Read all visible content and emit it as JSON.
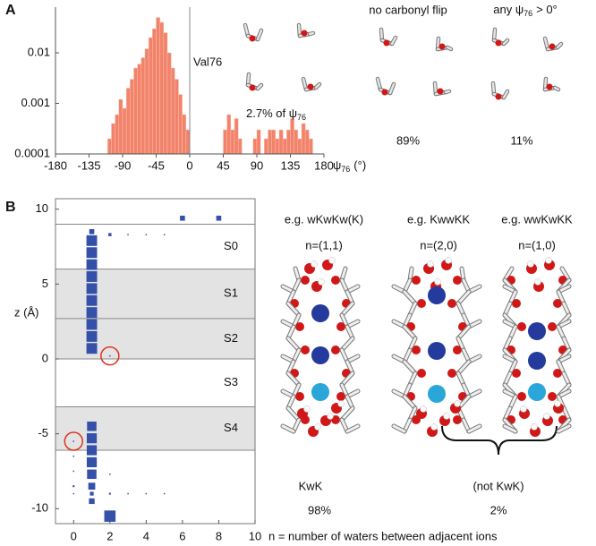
{
  "panel_labels": [
    "A",
    "B"
  ],
  "chart_data": [
    {
      "type": "histogram",
      "xlabel": {
        "symbol": "ψ",
        "subscript": "76",
        "suffix": "(°)"
      },
      "xlim": [
        -180,
        180
      ],
      "xticks": [
        -180,
        -135,
        -90,
        -45,
        0,
        45,
        90,
        135,
        180
      ],
      "ylim": [
        0.0001,
        0.08
      ],
      "yticks": [
        0.0001,
        0.001,
        0.01
      ],
      "log_scale": true,
      "color": "#f2836b",
      "refline": 0,
      "refline_label": "Val76",
      "annotation": {
        "prefix": "2.7% of ψ",
        "subscript": "76"
      },
      "bins": [
        -110,
        -105,
        -100,
        -95,
        -90,
        -85,
        -80,
        -75,
        -70,
        -65,
        -60,
        -55,
        -50,
        -45,
        -40,
        -35,
        -30,
        -25,
        -20,
        -15,
        -10,
        -5,
        0,
        5,
        10,
        15,
        20,
        25,
        30,
        35,
        40,
        45,
        50,
        55,
        60,
        65,
        70,
        75,
        80,
        85,
        90,
        95,
        100,
        105,
        110,
        115,
        120,
        125,
        130,
        135,
        140,
        145,
        150,
        155,
        160,
        165
      ],
      "counts": [
        0.0002,
        0.0004,
        0.0006,
        0.0012,
        0.0008,
        0.002,
        0.003,
        0.005,
        0.006,
        0.008,
        0.012,
        0.02,
        0.03,
        0.05,
        0.04,
        0.025,
        0.01,
        0.005,
        0.003,
        0.0015,
        0.0006,
        0.0003,
        0,
        0,
        0,
        0,
        0,
        0,
        0,
        0,
        0,
        0.0003,
        0.0006,
        0.0003,
        0.0005,
        0.0002,
        0,
        0,
        0,
        0.0002,
        0.0003,
        0,
        0.0002,
        0.0003,
        0.0003,
        0.0002,
        0.0003,
        0.0002,
        0.0003,
        0.0005,
        0.0003,
        0.0002,
        0.0004,
        0.0003,
        0.0002
      ]
    },
    {
      "type": "scatter",
      "xlabel": "n = number of waters between adjacent ions",
      "ylabel": "z (Å)",
      "xlim": [
        -1,
        10
      ],
      "xticks": [
        0,
        2,
        4,
        6,
        8,
        10
      ],
      "ylim": [
        -11,
        10.7
      ],
      "yticks": [
        -10,
        -5,
        0,
        5,
        10
      ],
      "color": "#3450a8",
      "site_boundaries": [
        9,
        6,
        2.7,
        0,
        -3.2,
        -6.1
      ],
      "sites": [
        "S0",
        "S1",
        "S2",
        "S3",
        "S4"
      ],
      "shaded": [
        false,
        true,
        true,
        false,
        true
      ],
      "x": [
        1,
        1,
        1,
        1,
        1,
        1,
        1,
        1,
        1,
        1,
        1,
        2,
        3,
        4,
        5,
        6,
        8,
        2,
        1,
        1,
        1,
        1,
        1,
        1,
        0,
        0,
        0,
        0,
        2,
        0,
        1,
        2,
        3,
        4,
        5,
        1,
        2
      ],
      "y": [
        8.5,
        7.9,
        7.1,
        6.3,
        5.5,
        4.7,
        3.9,
        3.1,
        2.3,
        1.5,
        0.7,
        8.3,
        8.3,
        8.3,
        8.3,
        9.4,
        9.4,
        0.2,
        -4.5,
        -5.3,
        -6.1,
        -6.9,
        -7.7,
        -8.5,
        -5.5,
        -6.5,
        -7.5,
        -8.5,
        -7.7,
        -9,
        -9.5,
        -9,
        -9,
        -9,
        -9,
        -9,
        -10.5
      ],
      "sizes": [
        0.4,
        0.85,
        0.85,
        0.85,
        0.85,
        0.85,
        0.85,
        0.85,
        0.85,
        0.85,
        0.85,
        0.25,
        0.1,
        0.1,
        0.1,
        0.4,
        0.4,
        0.1,
        0.75,
        0.8,
        0.8,
        0.8,
        0.75,
        0.55,
        0.1,
        0.1,
        0.1,
        0.15,
        0.1,
        0.1,
        0.45,
        0.15,
        0.1,
        0.1,
        0.1,
        0.3,
        0.9
      ],
      "circles": [
        {
          "x": 2,
          "y": 0.2
        },
        {
          "x": 0,
          "y": -5.5
        }
      ]
    }
  ],
  "panel_a_side": {
    "left_title": "no carbonyl flip",
    "right_title": {
      "prefix": "any ψ",
      "subscript": "76",
      "suffix": "> 0°"
    },
    "left_value": "89%",
    "right_value": "11%"
  },
  "panel_b_side": {
    "examples": [
      {
        "label": "e.g. wKwKw(K)",
        "n": "n=(1,1)"
      },
      {
        "label": "e.g. KwwKK",
        "n": "n=(2,0)"
      },
      {
        "label": "e.g. wwKwKK",
        "n": "n=(1,0)"
      }
    ],
    "left_group": "KwK",
    "left_value": "98%",
    "right_group": "(not KwK)",
    "right_value": "2%"
  }
}
